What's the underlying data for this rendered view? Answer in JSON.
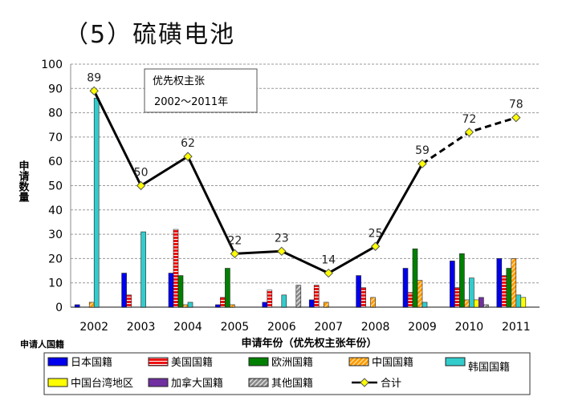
{
  "title": "（5）硫磺电池",
  "chart_data": {
    "type": "bar",
    "annotation": [
      "优先权主张",
      "2002～2011年"
    ],
    "xlabel": "申请年份（优先权主张年份）",
    "ylabel": "申请数量",
    "legend_title": "申请人国籍",
    "ylim": [
      0,
      100
    ],
    "yticks": [
      0,
      10,
      20,
      30,
      40,
      50,
      60,
      70,
      80,
      90,
      100
    ],
    "grid": true,
    "legend_placement": "bottom",
    "categories": [
      "2002",
      "2003",
      "2004",
      "2005",
      "2006",
      "2007",
      "2008",
      "2009",
      "2010",
      "2011"
    ],
    "series": [
      {
        "name": "日本国籍",
        "color": "#0000ee",
        "values": [
          1,
          14,
          14,
          1,
          2,
          3,
          13,
          16,
          19,
          20
        ]
      },
      {
        "name": "美国国籍",
        "color": "#ee1111",
        "pattern": "hstripe",
        "values": [
          0,
          5,
          32,
          4,
          7,
          9,
          8,
          6,
          8,
          13
        ]
      },
      {
        "name": "欧洲国籍",
        "color": "#008000",
        "values": [
          0,
          0,
          13,
          16,
          0,
          0,
          0,
          24,
          22,
          16
        ]
      },
      {
        "name": "中国国籍",
        "color": "#ff9900",
        "pattern": "diag",
        "values": [
          2,
          0,
          1,
          1,
          0,
          2,
          4,
          11,
          3,
          20
        ]
      },
      {
        "name": "韩国国籍",
        "color": "#33cccc",
        "values": [
          86,
          31,
          2,
          0,
          5,
          0,
          0,
          2,
          12,
          5
        ]
      },
      {
        "name": "中国台湾地区",
        "color": "#ffff00",
        "values": [
          0,
          0,
          0,
          0,
          0,
          0,
          0,
          0,
          3,
          4
        ]
      },
      {
        "name": "加拿大国籍",
        "color": "#7030a0",
        "values": [
          0,
          0,
          0,
          0,
          0,
          0,
          0,
          0,
          4,
          0
        ]
      },
      {
        "name": "其他国籍",
        "color": "#999999",
        "pattern": "diag",
        "values": [
          0,
          0,
          0,
          0,
          9,
          0,
          0,
          0,
          1,
          0
        ]
      }
    ],
    "total": {
      "name": "合计",
      "type": "line",
      "color": "#000000",
      "marker_color": "#ffff00",
      "values": [
        89,
        50,
        62,
        22,
        23,
        14,
        25,
        59,
        72,
        78
      ],
      "dashed_from": "2009"
    }
  }
}
